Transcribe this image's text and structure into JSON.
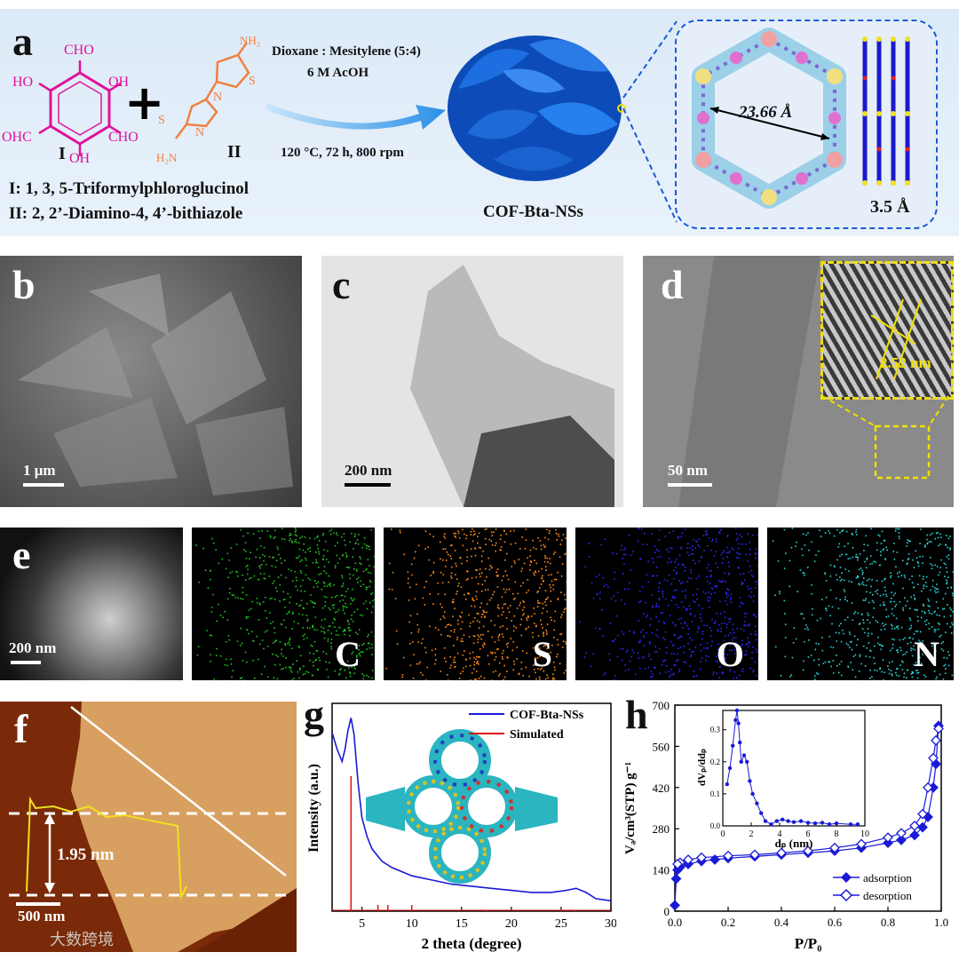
{
  "panel_a": {
    "label": "a",
    "reagent_I_name": "I",
    "reagent_II_name": "II",
    "cho": "CHO",
    "oh": "OH",
    "ho": "HO",
    "ohc": "OHC",
    "nh2": "NH₂",
    "h2n": "H₂N",
    "n": "N",
    "s": "S",
    "plus": "+",
    "condition1": "Dioxane : Mesitylene (5:4)",
    "condition2": "6 M AcOH",
    "condition3": "120 °C, 72 h, 800 rpm",
    "legend_I": "I: 1, 3, 5-Triformylphloroglucinol",
    "legend_II": "II: 2, 2’-Diamino-4, 4’-bithiazole",
    "product": "COF-Bta-NSs",
    "pore_size": "23.66 Å",
    "layer_spacing": "3.5 Å"
  },
  "panel_b": {
    "label": "b",
    "scale": "1 μm"
  },
  "panel_c": {
    "label": "c",
    "scale": "200 nm"
  },
  "panel_d": {
    "label": "d",
    "scale": "50 nm",
    "lattice": "2.52 nm"
  },
  "panel_e": {
    "label": "e",
    "scale": "200 nm",
    "elements": [
      "C",
      "S",
      "O",
      "N"
    ]
  },
  "panel_f": {
    "label": "f",
    "scale": "500 nm",
    "height": "1.95 nm"
  },
  "panel_g": {
    "label": "g"
  },
  "panel_h": {
    "label": "h"
  },
  "watermark": "大数跨境",
  "colors": {
    "C": "#22c422",
    "S": "#ff8c1a",
    "O": "#1a1aff",
    "N": "#2ad6d6",
    "accent": "#1a3ad6",
    "yellow": "#f0e000"
  },
  "chart_data": [
    {
      "type": "line",
      "xlabel": "2 theta (degree)",
      "ylabel": "Intensity (a.u.)",
      "xlim": [
        2,
        30
      ],
      "xticks": [
        5,
        10,
        15,
        20,
        25,
        30
      ],
      "series": [
        {
          "name": "COF-Bta-NSs",
          "color": "#1a1ad6",
          "x": [
            2.0,
            2.5,
            3.0,
            3.3,
            3.6,
            3.9,
            4.2,
            4.6,
            5.0,
            5.5,
            6.0,
            7.0,
            8.0,
            9.0,
            10.0,
            12.0,
            14.0,
            16.0,
            18.0,
            20.0,
            22.0,
            24.0,
            25.5,
            26.5,
            27.5,
            28.5,
            30.0
          ],
          "y": [
            0.86,
            0.78,
            0.72,
            0.78,
            0.87,
            0.93,
            0.85,
            0.62,
            0.45,
            0.36,
            0.3,
            0.24,
            0.21,
            0.19,
            0.17,
            0.15,
            0.13,
            0.12,
            0.11,
            0.1,
            0.09,
            0.09,
            0.1,
            0.11,
            0.09,
            0.06,
            0.05
          ]
        },
        {
          "name": "Simulated",
          "color": "#e01010",
          "x": [
            3.9,
            6.6,
            7.6,
            10.0,
            17.5,
            25.0,
            26.4
          ],
          "y": [
            0.65,
            0.03,
            0.03,
            0.03,
            0.005,
            0.005,
            0.005
          ]
        }
      ]
    },
    {
      "type": "line",
      "xlabel": "P/P₀",
      "ylabel": "Vₐ/cm³(STP) g⁻¹",
      "xlim": [
        0,
        1.0
      ],
      "ylim": [
        0,
        700
      ],
      "xticks": [
        0.0,
        0.2,
        0.4,
        0.6,
        0.8,
        1.0
      ],
      "yticks": [
        0,
        140,
        280,
        420,
        560,
        700
      ],
      "series": [
        {
          "name": "adsorption",
          "color": "#1a1ad6",
          "marker": "filled-diamond",
          "x": [
            0.0,
            0.005,
            0.01,
            0.02,
            0.05,
            0.1,
            0.15,
            0.2,
            0.3,
            0.4,
            0.5,
            0.6,
            0.7,
            0.8,
            0.85,
            0.9,
            0.93,
            0.95,
            0.97,
            0.98,
            0.99
          ],
          "y": [
            20,
            110,
            140,
            150,
            160,
            170,
            175,
            180,
            186,
            192,
            198,
            205,
            215,
            232,
            242,
            258,
            285,
            320,
            420,
            500,
            630
          ]
        },
        {
          "name": "desorption",
          "color": "#1a1ad6",
          "marker": "open-diamond",
          "x": [
            0.99,
            0.98,
            0.97,
            0.95,
            0.93,
            0.9,
            0.85,
            0.8,
            0.7,
            0.6,
            0.5,
            0.4,
            0.3,
            0.2,
            0.1,
            0.05,
            0.02,
            0.01
          ],
          "y": [
            620,
            580,
            520,
            420,
            330,
            290,
            265,
            250,
            228,
            215,
            205,
            198,
            192,
            188,
            182,
            175,
            165,
            160
          ]
        }
      ],
      "inset": {
        "xlabel": "dₚ (nm)",
        "ylabel": "dVₚ/ddₚ",
        "xlim": [
          0,
          10
        ],
        "ylim": [
          0,
          0.36
        ],
        "xticks": [
          0,
          2,
          4,
          6,
          8,
          10
        ],
        "yticks": [
          0.0,
          0.1,
          0.2,
          0.3
        ],
        "x": [
          0.3,
          0.5,
          0.7,
          0.9,
          1.0,
          1.1,
          1.2,
          1.3,
          1.5,
          1.7,
          1.9,
          2.1,
          2.4,
          2.7,
          3.0,
          3.4,
          3.8,
          4.2,
          4.6,
          5.0,
          5.5,
          6.0,
          6.5,
          7.0,
          7.5,
          8.0,
          9.0,
          9.5
        ],
        "y": [
          0.13,
          0.18,
          0.25,
          0.33,
          0.36,
          0.32,
          0.26,
          0.2,
          0.22,
          0.2,
          0.14,
          0.1,
          0.07,
          0.04,
          0.015,
          0.005,
          0.015,
          0.02,
          0.015,
          0.012,
          0.015,
          0.01,
          0.008,
          0.01,
          0.005,
          0.008,
          0.005,
          0.005
        ]
      }
    }
  ]
}
